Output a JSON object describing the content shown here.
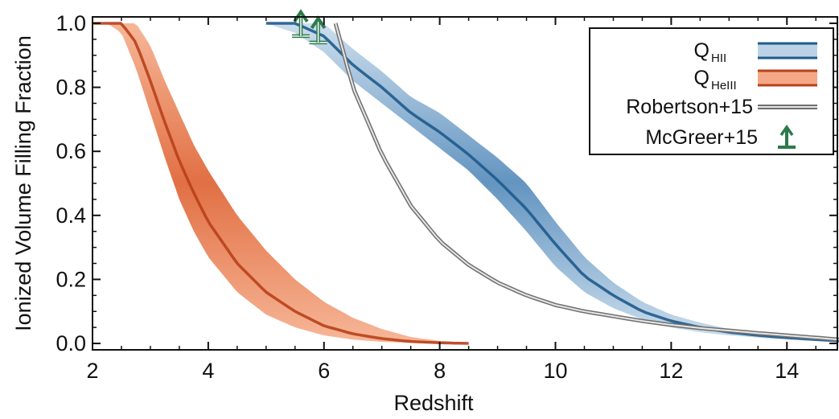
{
  "chart_data": {
    "type": "area",
    "xlabel": "Redshift",
    "ylabel": "Ionized Volume Filling Fraction",
    "xlim": [
      2,
      14.9
    ],
    "ylim": [
      -0.02,
      1.02
    ],
    "xticks": [
      2,
      4,
      6,
      8,
      10,
      12,
      14
    ],
    "xtick_labels": [
      "2",
      "4",
      "6",
      "8",
      "10",
      "12",
      "14"
    ],
    "yticks": [
      0.0,
      0.2,
      0.4,
      0.6,
      0.8,
      1.0
    ],
    "ytick_labels": [
      "0.0",
      "0.2",
      "0.4",
      "0.6",
      "0.8",
      "1.0"
    ],
    "grid": false,
    "legend_position": "top-right",
    "series": [
      {
        "name_main": "Q",
        "name_sub": "HII",
        "kind": "band",
        "color": "#1e5a8c",
        "x": [
          5.0,
          5.5,
          6.0,
          6.5,
          7.0,
          7.5,
          8.0,
          8.5,
          9.0,
          9.5,
          10.0,
          10.5,
          11.0,
          11.5,
          12.0,
          12.5,
          13.0,
          13.5,
          14.0,
          14.5,
          14.9
        ],
        "lower": [
          1.0,
          0.97,
          0.91,
          0.82,
          0.75,
          0.68,
          0.61,
          0.54,
          0.45,
          0.35,
          0.24,
          0.16,
          0.11,
          0.075,
          0.05,
          0.035,
          0.025,
          0.018,
          0.012,
          0.008,
          0.005
        ],
        "median": [
          1.0,
          1.0,
          0.96,
          0.87,
          0.8,
          0.72,
          0.66,
          0.59,
          0.51,
          0.42,
          0.31,
          0.21,
          0.15,
          0.1,
          0.07,
          0.05,
          0.035,
          0.025,
          0.018,
          0.012,
          0.008
        ],
        "upper": [
          1.0,
          1.0,
          1.0,
          0.92,
          0.85,
          0.77,
          0.72,
          0.65,
          0.58,
          0.5,
          0.38,
          0.27,
          0.19,
          0.13,
          0.09,
          0.065,
          0.045,
          0.032,
          0.024,
          0.018,
          0.012
        ]
      },
      {
        "name_main": "Q",
        "name_sub": "HeIII",
        "kind": "band",
        "color": "#b8401a",
        "x": [
          2.0,
          2.25,
          2.5,
          2.75,
          3.0,
          3.25,
          3.5,
          3.75,
          4.0,
          4.5,
          5.0,
          5.5,
          6.0,
          6.5,
          7.0,
          7.5,
          8.0,
          8.5
        ],
        "lower": [
          1.0,
          1.0,
          0.97,
          0.86,
          0.72,
          0.58,
          0.45,
          0.35,
          0.27,
          0.16,
          0.09,
          0.05,
          0.025,
          0.012,
          0.005,
          0.002,
          0.0,
          0.0
        ],
        "median": [
          1.0,
          1.0,
          1.0,
          0.94,
          0.82,
          0.69,
          0.57,
          0.47,
          0.38,
          0.25,
          0.16,
          0.1,
          0.055,
          0.03,
          0.015,
          0.006,
          0.002,
          0.0
        ],
        "upper": [
          1.0,
          1.0,
          1.0,
          1.0,
          0.93,
          0.82,
          0.72,
          0.62,
          0.54,
          0.4,
          0.29,
          0.2,
          0.13,
          0.08,
          0.045,
          0.02,
          0.008,
          0.002
        ]
      },
      {
        "name_main": "Robertson+15",
        "kind": "line",
        "color": "#9a9a9a",
        "x": [
          6.2,
          6.5,
          7.0,
          7.5,
          8.0,
          8.5,
          9.0,
          9.5,
          10.0,
          10.5,
          11.0,
          11.5,
          12.0,
          12.5,
          13.0,
          13.5,
          14.0,
          14.5,
          14.9
        ],
        "y": [
          1.0,
          0.8,
          0.59,
          0.43,
          0.32,
          0.245,
          0.19,
          0.15,
          0.12,
          0.1,
          0.085,
          0.07,
          0.058,
          0.048,
          0.04,
          0.032,
          0.025,
          0.018,
          0.012
        ]
      },
      {
        "name_main": "McGreer+15",
        "kind": "lower_limits",
        "color": "#2d7a4a",
        "x": [
          5.6,
          5.9
        ],
        "y": [
          0.96,
          0.94
        ]
      }
    ]
  }
}
